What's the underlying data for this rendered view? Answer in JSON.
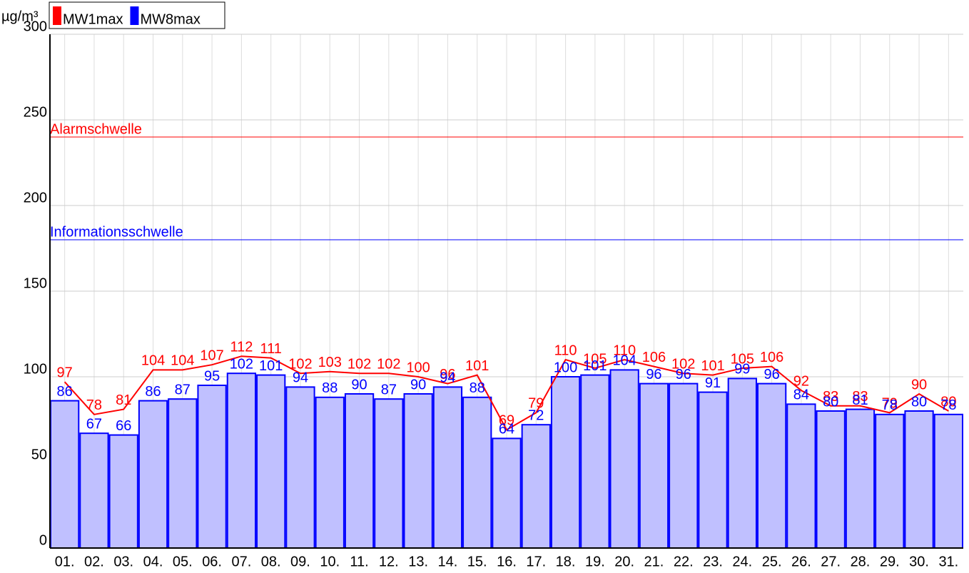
{
  "chart_data": {
    "type": "bar-line",
    "y_label": "µg/m³",
    "categories": [
      "01.",
      "02.",
      "03.",
      "04.",
      "05.",
      "06.",
      "07.",
      "08.",
      "09.",
      "10.",
      "11.",
      "12.",
      "13.",
      "14.",
      "15.",
      "16.",
      "17.",
      "18.",
      "19.",
      "20.",
      "21.",
      "22.",
      "23.",
      "24.",
      "25.",
      "26.",
      "27.",
      "28.",
      "29.",
      "30.",
      "31."
    ],
    "series": [
      {
        "name": "MW1max",
        "color": "#ff0000",
        "kind": "line",
        "values": [
          97,
          78,
          81,
          104,
          104,
          107,
          112,
          111,
          102,
          103,
          102,
          102,
          100,
          96,
          101,
          69,
          79,
          110,
          105,
          110,
          106,
          102,
          101,
          105,
          106,
          92,
          83,
          83,
          79,
          90,
          80
        ]
      },
      {
        "name": "MW8max",
        "color": "#0000ff",
        "kind": "bar",
        "values": [
          86,
          67,
          66,
          86,
          87,
          95,
          102,
          101,
          94,
          88,
          90,
          87,
          90,
          94,
          88,
          64,
          72,
          100,
          101,
          104,
          96,
          96,
          91,
          99,
          96,
          84,
          80,
          81,
          78,
          80,
          78
        ]
      }
    ],
    "reference_lines": [
      {
        "label": "Alarmschwelle",
        "value": 240,
        "color": "#ff0000"
      },
      {
        "label": "Informationsschwelle",
        "value": 180,
        "color": "#0000ff"
      }
    ],
    "ylim": [
      0,
      300
    ],
    "yticks": [
      0,
      50,
      100,
      150,
      200,
      250,
      300
    ],
    "grid": true
  }
}
